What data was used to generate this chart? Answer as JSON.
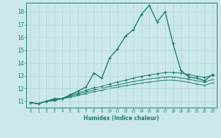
{
  "xlabel": "Humidex (Indice chaleur)",
  "background_color": "#cce9e9",
  "grid_color": "#b0d5d5",
  "line_color": "#1a7a6e",
  "xlim": [
    -0.5,
    23.5
  ],
  "ylim": [
    10.5,
    18.7
  ],
  "yticks": [
    11,
    12,
    13,
    14,
    15,
    16,
    17,
    18
  ],
  "xticks": [
    0,
    1,
    2,
    3,
    4,
    5,
    6,
    7,
    8,
    9,
    10,
    11,
    12,
    13,
    14,
    15,
    16,
    17,
    18,
    19,
    20,
    21,
    22,
    23
  ],
  "series": [
    {
      "x": [
        0,
        1,
        2,
        3,
        4,
        5,
        6,
        7,
        8,
        9,
        10,
        11,
        12,
        13,
        14,
        15,
        16,
        17,
        18,
        19,
        20,
        21,
        22,
        23
      ],
      "y": [
        10.9,
        10.8,
        11.0,
        11.2,
        11.2,
        11.5,
        11.8,
        12.1,
        13.2,
        12.8,
        14.4,
        15.1,
        16.1,
        16.6,
        17.8,
        18.5,
        17.2,
        18.0,
        15.5,
        13.4,
        12.9,
        12.8,
        12.6,
        13.1
      ]
    },
    {
      "x": [
        0,
        1,
        2,
        3,
        4,
        5,
        6,
        7,
        8,
        9,
        10,
        11,
        12,
        13,
        14,
        15,
        16,
        17,
        18,
        19,
        20,
        21,
        22,
        23
      ],
      "y": [
        10.9,
        10.8,
        11.0,
        11.15,
        11.2,
        11.45,
        11.65,
        11.85,
        12.05,
        12.15,
        12.35,
        12.5,
        12.65,
        12.8,
        12.95,
        13.05,
        13.15,
        13.25,
        13.25,
        13.2,
        13.1,
        12.95,
        12.85,
        13.05
      ]
    },
    {
      "x": [
        0,
        1,
        2,
        3,
        4,
        5,
        6,
        7,
        8,
        9,
        10,
        11,
        12,
        13,
        14,
        15,
        16,
        17,
        18,
        19,
        20,
        21,
        22,
        23
      ],
      "y": [
        10.9,
        10.8,
        11.0,
        11.1,
        11.2,
        11.38,
        11.55,
        11.72,
        11.9,
        12.0,
        12.15,
        12.28,
        12.42,
        12.55,
        12.65,
        12.75,
        12.82,
        12.9,
        12.9,
        12.82,
        12.72,
        12.6,
        12.5,
        12.7
      ]
    },
    {
      "x": [
        0,
        1,
        2,
        3,
        4,
        5,
        6,
        7,
        8,
        9,
        10,
        11,
        12,
        13,
        14,
        15,
        16,
        17,
        18,
        19,
        20,
        21,
        22,
        23
      ],
      "y": [
        10.9,
        10.8,
        11.0,
        11.05,
        11.2,
        11.3,
        11.45,
        11.6,
        11.75,
        11.85,
        12.0,
        12.1,
        12.22,
        12.32,
        12.42,
        12.5,
        12.58,
        12.65,
        12.65,
        12.58,
        12.48,
        12.35,
        12.25,
        12.45
      ]
    }
  ]
}
